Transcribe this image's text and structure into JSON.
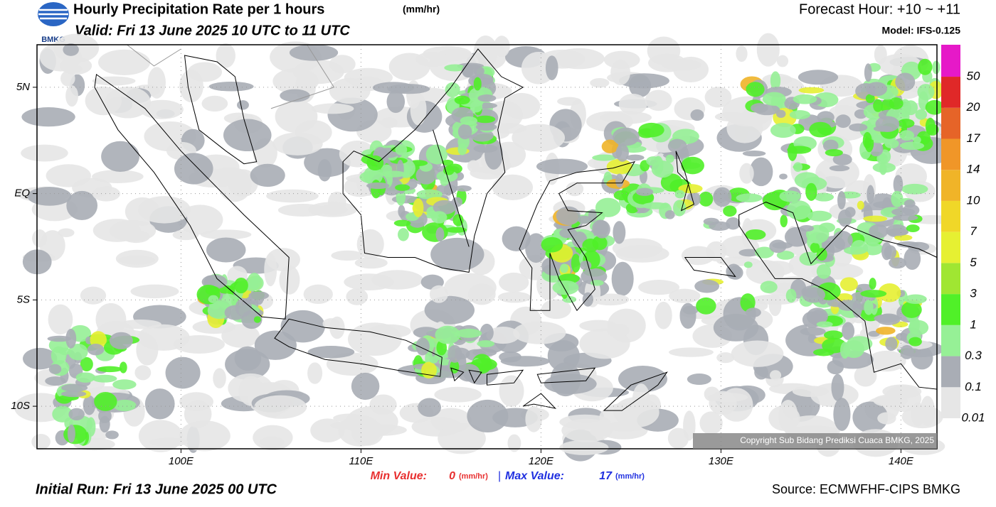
{
  "header": {
    "logo_text": "BMKG",
    "title": "Hourly Precipitation Rate per 1 hours",
    "title_unit": "(mm/hr)",
    "valid": "Valid: Fri 13 June 2025 10 UTC to 11 UTC",
    "forecast_hour": "Forecast Hour: +10 ~ +11",
    "model": "Model: IFS-0.125"
  },
  "map": {
    "lon_range": [
      92,
      142
    ],
    "lat_range": [
      -12,
      7
    ],
    "lon_ticks": [
      {
        "value": 100,
        "label": "100E"
      },
      {
        "value": 110,
        "label": "110E"
      },
      {
        "value": 120,
        "label": "120E"
      },
      {
        "value": 130,
        "label": "130E"
      },
      {
        "value": 140,
        "label": "140E"
      }
    ],
    "lat_ticks": [
      {
        "value": 5,
        "label": "5N"
      },
      {
        "value": 0,
        "label": "EQ"
      },
      {
        "value": -5,
        "label": "5S"
      },
      {
        "value": -10,
        "label": "10S"
      }
    ],
    "grid": true,
    "copyright": "Copyright Sub Bidang Prediksi Cuaca BMKG, 2025"
  },
  "colorbar": {
    "levels": [
      0.01,
      0.1,
      0.3,
      1,
      3,
      5,
      7,
      10,
      14,
      17,
      20,
      50
    ],
    "colors": [
      "#e6e6e6",
      "#a9adb5",
      "#96f096",
      "#50f028",
      "#a0e632",
      "#e6f032",
      "#f0d728",
      "#f0b428",
      "#f09628",
      "#e66428",
      "#e02828",
      "#e619c8"
    ]
  },
  "footer": {
    "min_label": "Min Value:",
    "min_value": 0,
    "min_unit": "(mm/hr)",
    "separator": "|",
    "max_label": "Max Value:",
    "max_value": 17,
    "max_unit": "(mm/hr)",
    "initial_run": "Initial Run: Fri 13 June 2025 00 UTC",
    "source": "Source: ECMWFHF-CIPS BMKG"
  }
}
